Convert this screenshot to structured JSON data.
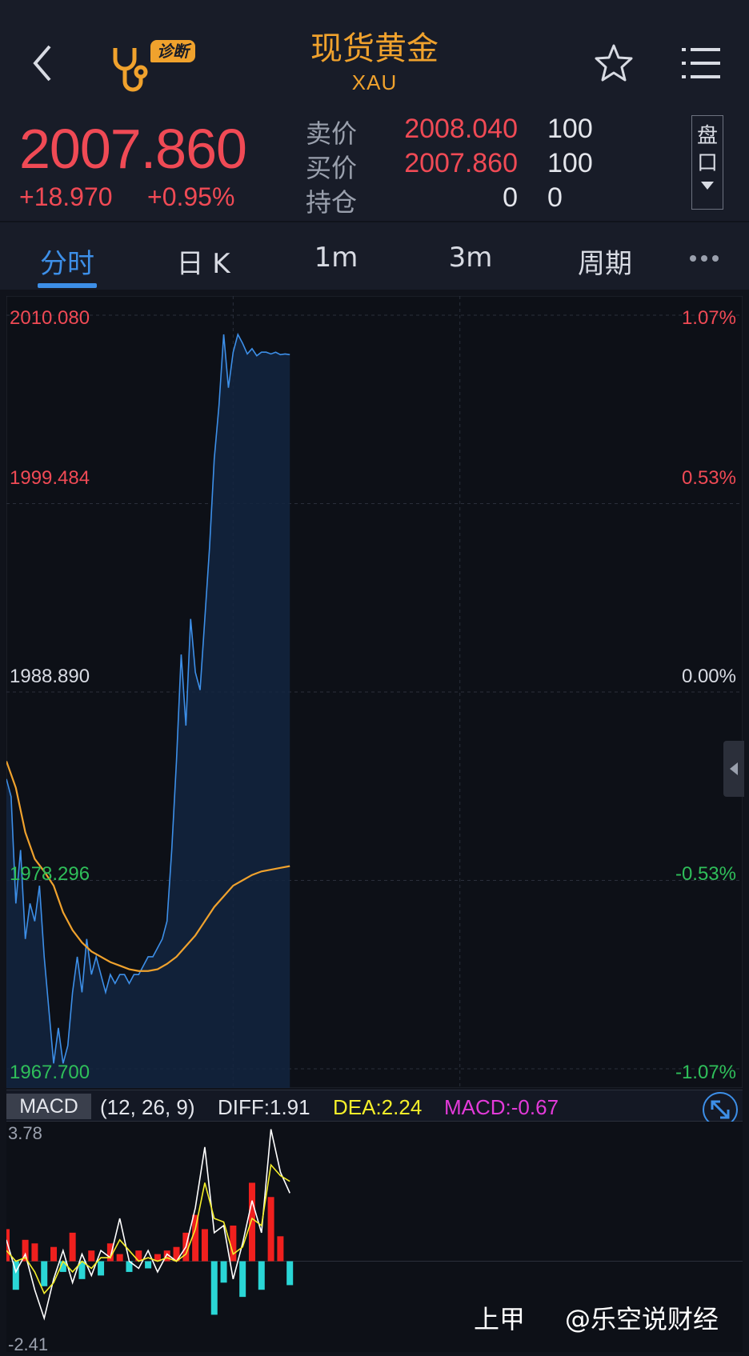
{
  "header": {
    "title": "现货黄金",
    "symbol": "XAU",
    "diagnose_badge": "诊断"
  },
  "quote": {
    "last_price": "2007.860",
    "change": "+18.970",
    "change_pct": "+0.95%",
    "rows": [
      {
        "label": "卖价",
        "value": "2008.040",
        "volume": "100"
      },
      {
        "label": "买价",
        "value": "2007.860",
        "volume": "100"
      },
      {
        "label": "持仓",
        "value": "0",
        "volume": "0"
      }
    ],
    "pankou_label_1": "盘",
    "pankou_label_2": "口"
  },
  "tabs": [
    {
      "label": "分时"
    },
    {
      "label": "日 K"
    },
    {
      "label": "1m"
    },
    {
      "label": "3m"
    },
    {
      "label": "周期"
    }
  ],
  "colors": {
    "up": "#f04a55",
    "down": "#2fbf5a",
    "price_line": "#3d8fe8",
    "avg_line": "#f0a22d",
    "accent": "#f0a22d"
  },
  "macd": {
    "tag": "MACD",
    "params": "(12, 26, 9)",
    "diff": "DIFF:1.91",
    "dea": "DEA:2.24",
    "macd": "MACD:-0.67",
    "ymax_label": "3.78",
    "ymin_label": "-2.41"
  },
  "watermark": {
    "logo_text": "上甲",
    "handle": "@乐空说财经"
  },
  "chart_data": {
    "type": "line",
    "y_left_ticks": [
      "2010.080",
      "1999.484",
      "1988.890",
      "1978.296",
      "1967.700"
    ],
    "y_right_ticks": [
      "1.07%",
      "0.53%",
      "0.00%",
      "-0.53%",
      "-1.07%"
    ],
    "ylim": [
      1967.7,
      2010.08
    ],
    "prev_close": 1988.89,
    "x_fraction_filled": 0.385,
    "series": [
      {
        "x": [
          0,
          2,
          4,
          6,
          8,
          10,
          12,
          14,
          16,
          18,
          20,
          22,
          24,
          26,
          28,
          30,
          32,
          34,
          36,
          38,
          40,
          42,
          44,
          46,
          48,
          50,
          52,
          54,
          56,
          58,
          60,
          62,
          64,
          66,
          68,
          70,
          72,
          74,
          76,
          78,
          80,
          82,
          84,
          86,
          88,
          90,
          92,
          94,
          96,
          98,
          100,
          102,
          104,
          106,
          108,
          110,
          112,
          114,
          116,
          118,
          120
        ],
        "values": [
          1984,
          1983,
          1977,
          1980,
          1975,
          1977,
          1976,
          1978,
          1974,
          1971,
          1968,
          1970,
          1968,
          1969,
          1972,
          1974,
          1972,
          1975,
          1973,
          1974,
          1973,
          1972,
          1973,
          1972.5,
          1973,
          1973,
          1972.5,
          1973,
          1973,
          1973.5,
          1974,
          1974,
          1974.5,
          1975,
          1976,
          1980,
          1985,
          1991,
          1987,
          1993,
          1990,
          1989,
          1993,
          1997,
          2002,
          2005,
          2009,
          2006,
          2008,
          2009,
          2008.5,
          2007.9,
          2008.2,
          2007.8,
          2008,
          2008,
          2007.9,
          2008,
          2007.86,
          2007.9,
          2007.86
        ]
      },
      {
        "x": [
          0,
          4,
          8,
          12,
          16,
          20,
          24,
          28,
          32,
          36,
          40,
          44,
          48,
          52,
          56,
          60,
          64,
          68,
          72,
          76,
          80,
          84,
          88,
          92,
          96,
          100,
          104,
          108,
          112,
          116,
          120
        ],
        "values": [
          1985,
          1983.5,
          1981,
          1979.5,
          1978.8,
          1978,
          1976.5,
          1975.5,
          1974.8,
          1974.3,
          1974,
          1973.7,
          1973.5,
          1973.3,
          1973.2,
          1973.2,
          1973.3,
          1973.6,
          1974,
          1974.6,
          1975.2,
          1976,
          1976.8,
          1977.4,
          1978,
          1978.3,
          1978.6,
          1978.8,
          1978.9,
          1979,
          1979.1
        ]
      }
    ],
    "macd_series": {
      "ylim": [
        -2.41,
        3.78
      ],
      "hist_x": [
        0,
        4,
        8,
        12,
        16,
        20,
        24,
        28,
        32,
        36,
        40,
        44,
        48,
        52,
        56,
        60,
        64,
        68,
        72,
        76,
        80,
        84,
        88,
        92,
        96,
        100,
        104,
        108,
        112,
        116,
        120
      ],
      "hist": [
        0.9,
        -0.8,
        0.6,
        0.5,
        -0.7,
        0.4,
        -0.3,
        0.8,
        -0.5,
        0.3,
        -0.4,
        0.5,
        0.2,
        -0.3,
        0.3,
        -0.2,
        0.2,
        0.3,
        0.4,
        0.8,
        1.3,
        0.9,
        -1.5,
        -0.6,
        1.0,
        -1.0,
        2.2,
        -0.8,
        1.8,
        0.7,
        -0.67
      ],
      "diff_x": [
        0,
        4,
        8,
        12,
        16,
        20,
        24,
        28,
        32,
        36,
        40,
        44,
        48,
        52,
        56,
        60,
        64,
        68,
        72,
        76,
        80,
        84,
        88,
        92,
        96,
        100,
        104,
        108,
        112,
        116,
        120
      ],
      "diff": [
        0.6,
        -0.3,
        0.2,
        -0.8,
        -1.6,
        -0.5,
        0.3,
        -0.6,
        0.2,
        -0.4,
        0.3,
        0.1,
        1.2,
        0.0,
        -0.2,
        0.3,
        -0.3,
        0.2,
        0.0,
        0.4,
        1.5,
        3.2,
        0.8,
        1.0,
        -0.5,
        0.5,
        1.7,
        0.8,
        3.7,
        2.5,
        1.91
      ],
      "dea": [
        0.3,
        0.0,
        0.1,
        -0.3,
        -0.9,
        -0.6,
        0.0,
        -0.3,
        0.0,
        -0.2,
        0.1,
        0.1,
        0.6,
        0.3,
        0.0,
        0.1,
        0.0,
        0.1,
        0.0,
        0.2,
        0.9,
        2.2,
        1.2,
        1.1,
        0.2,
        0.4,
        1.2,
        1.0,
        2.7,
        2.4,
        2.24
      ]
    }
  }
}
